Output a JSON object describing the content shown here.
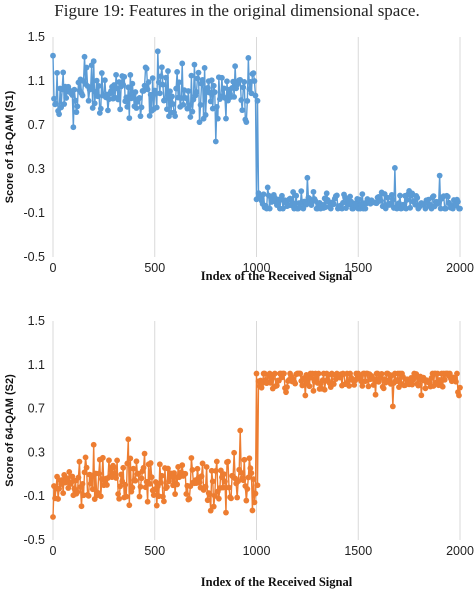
{
  "caption": "Figure 19: Features in the original dimensional space.",
  "chart_data": [
    {
      "type": "line",
      "color": "#5B9BD5",
      "xlabel": "Index of the Received Signal",
      "ylabel": "Score of 16-QAM  (S1)",
      "xlim": [
        0,
        2000
      ],
      "ylim": [
        -0.5,
        1.5
      ],
      "xticks": [
        "0",
        "500",
        "1000",
        "1500",
        "2000"
      ],
      "yticks": [
        "-0.5",
        "-0.1",
        "0.3",
        "0.7",
        "1.1",
        "1.5"
      ],
      "grid": "vertical",
      "series": [
        {
          "x_range": [
            0,
            1000
          ],
          "mean": 0.98,
          "spread": 0.12,
          "approx_min": 0.55,
          "approx_max": 1.38,
          "points": [
            [
              0,
              1.33
            ],
            [
              100,
              0.68
            ],
            [
              200,
              1.28
            ],
            [
              515,
              1.37
            ],
            [
              570,
              0.78
            ],
            [
              800,
              0.55
            ],
            [
              960,
              1.31
            ]
          ]
        },
        {
          "x_range": [
            1000,
            2000
          ],
          "mean": 0.0,
          "spread": 0.05,
          "approx_min": -0.1,
          "approx_max": 0.31,
          "points": [
            [
              1005,
              0.92
            ],
            [
              1010,
              0.08
            ],
            [
              1250,
              0.22
            ],
            [
              1680,
              0.31
            ],
            [
              1900,
              0.24
            ]
          ]
        }
      ]
    },
    {
      "type": "line",
      "color": "#ED7D31",
      "xlabel": "Index of the Received Signal",
      "ylabel": "Score of 64-QAM  (S2)",
      "xlim": [
        0,
        2000
      ],
      "ylim": [
        -0.5,
        1.5
      ],
      "xticks": [
        "0",
        "500",
        "1000",
        "1500",
        "2000"
      ],
      "yticks": [
        "-0.5",
        "-0.1",
        "0.3",
        "0.7",
        "1.1",
        "1.5"
      ],
      "grid": "vertical",
      "series": [
        {
          "x_range": [
            0,
            1000
          ],
          "mean": 0.03,
          "spread": 0.11,
          "approx_min": -0.29,
          "approx_max": 0.5,
          "points": [
            [
              0,
              -0.29
            ],
            [
              200,
              0.37
            ],
            [
              370,
              0.42
            ],
            [
              920,
              0.5
            ],
            [
              980,
              -0.23
            ]
          ]
        },
        {
          "x_range": [
            1000,
            2000
          ],
          "mean": 0.97,
          "spread": 0.06,
          "approx_min": 0.72,
          "approx_max": 1.08,
          "points": [
            [
              1005,
              0.0
            ],
            [
              1010,
              0.95
            ],
            [
              1240,
              0.82
            ],
            [
              1670,
              0.72
            ],
            [
              1990,
              0.85
            ]
          ]
        }
      ]
    }
  ]
}
